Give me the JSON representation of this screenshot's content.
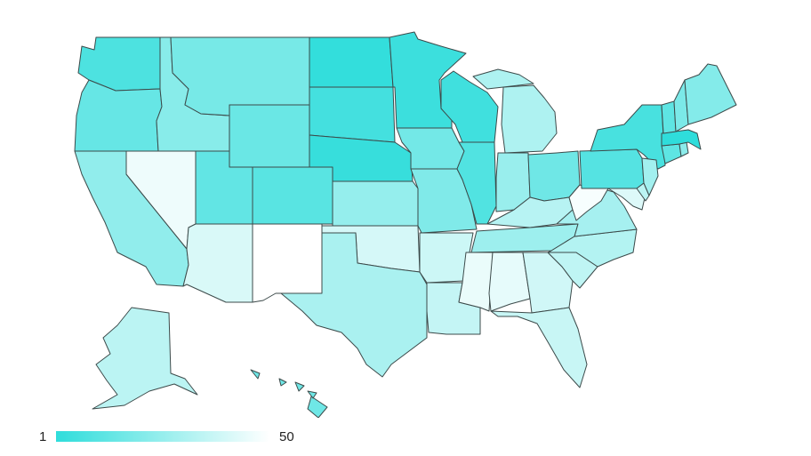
{
  "legend": {
    "min_label": "1",
    "max_label": "50",
    "color_low": "#2fdddb",
    "color_high": "#ffffff"
  },
  "chart_data": {
    "type": "choropleth",
    "region": "USA states",
    "scale_min": 1,
    "scale_max": 50,
    "values": {
      "WA": 8,
      "OR": 14,
      "CA": 24,
      "NV": 46,
      "ID": 22,
      "MT": 18,
      "WY": 15,
      "UT": 13,
      "AZ": 41,
      "NM": 50,
      "CO": 11,
      "ND": 2,
      "SD": 6,
      "NE": 3,
      "KS": 25,
      "OK": 40,
      "TX": 30,
      "MN": 4,
      "IA": 17,
      "MO": 20,
      "AR": 38,
      "LA": 36,
      "WI": 5,
      "IL": 9,
      "MI": 31,
      "IN": 26,
      "OH": 16,
      "KY": 33,
      "TN": 27,
      "MS": 45,
      "AL": 44,
      "GA": 39,
      "FL": 37,
      "SC": 35,
      "NC": 32,
      "VA": 29,
      "WV": 48,
      "PA": 10,
      "NY": 7,
      "VT": 12,
      "NH": 19,
      "ME": 21,
      "MA": 1,
      "RI": 23,
      "CT": 12,
      "NJ": 28,
      "DE": 34,
      "MD": 42,
      "AK": 34,
      "HI": 16
    }
  }
}
